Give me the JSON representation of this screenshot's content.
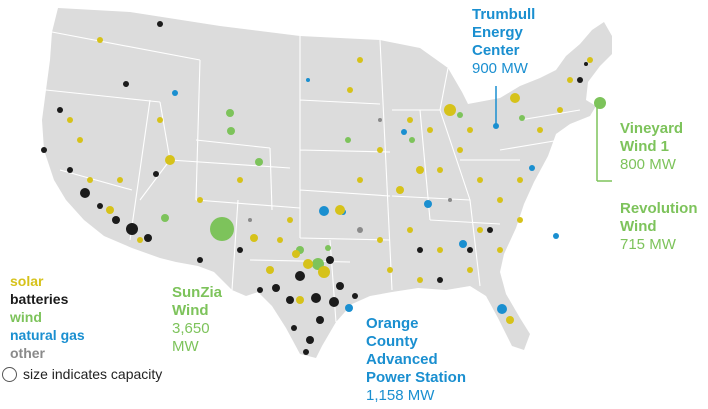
{
  "colors": {
    "land": "#dcdcdc",
    "state_border": "#ffffff",
    "solar": "#d6c21a",
    "batteries": "#1b1b1b",
    "wind": "#7dc35b",
    "natural_gas": "#1a8fd0",
    "other": "#8a8a8a"
  },
  "legend": {
    "entries": [
      {
        "key": "solar",
        "label": "solar",
        "color": "#d6c21a"
      },
      {
        "key": "batteries",
        "label": "batteries",
        "color": "#1b1b1b"
      },
      {
        "key": "wind",
        "label": "wind",
        "color": "#7dc35b"
      },
      {
        "key": "natural_gas",
        "label": "natural gas",
        "color": "#1a8fd0"
      },
      {
        "key": "other",
        "label": "other",
        "color": "#8a8a8a"
      }
    ],
    "size_note": "size indicates capacity"
  },
  "callouts": {
    "trumbull": {
      "lines": [
        "Trumbull",
        "Energy",
        "Center"
      ],
      "capacity": "900 MW"
    },
    "vineyard": {
      "lines": [
        "Vineyard",
        "Wind 1"
      ],
      "capacity": "800 MW"
    },
    "revolution": {
      "lines": [
        "Revolution",
        "Wind"
      ],
      "capacity": "715 MW"
    },
    "sunzia": {
      "lines": [
        "SunZia",
        "Wind"
      ],
      "capacity_lines": [
        "3,650",
        "MW"
      ]
    },
    "orange": {
      "lines": [
        "Orange",
        "County",
        "Advanced",
        "Power Station"
      ],
      "capacity": "1,158 MW"
    }
  }
}
